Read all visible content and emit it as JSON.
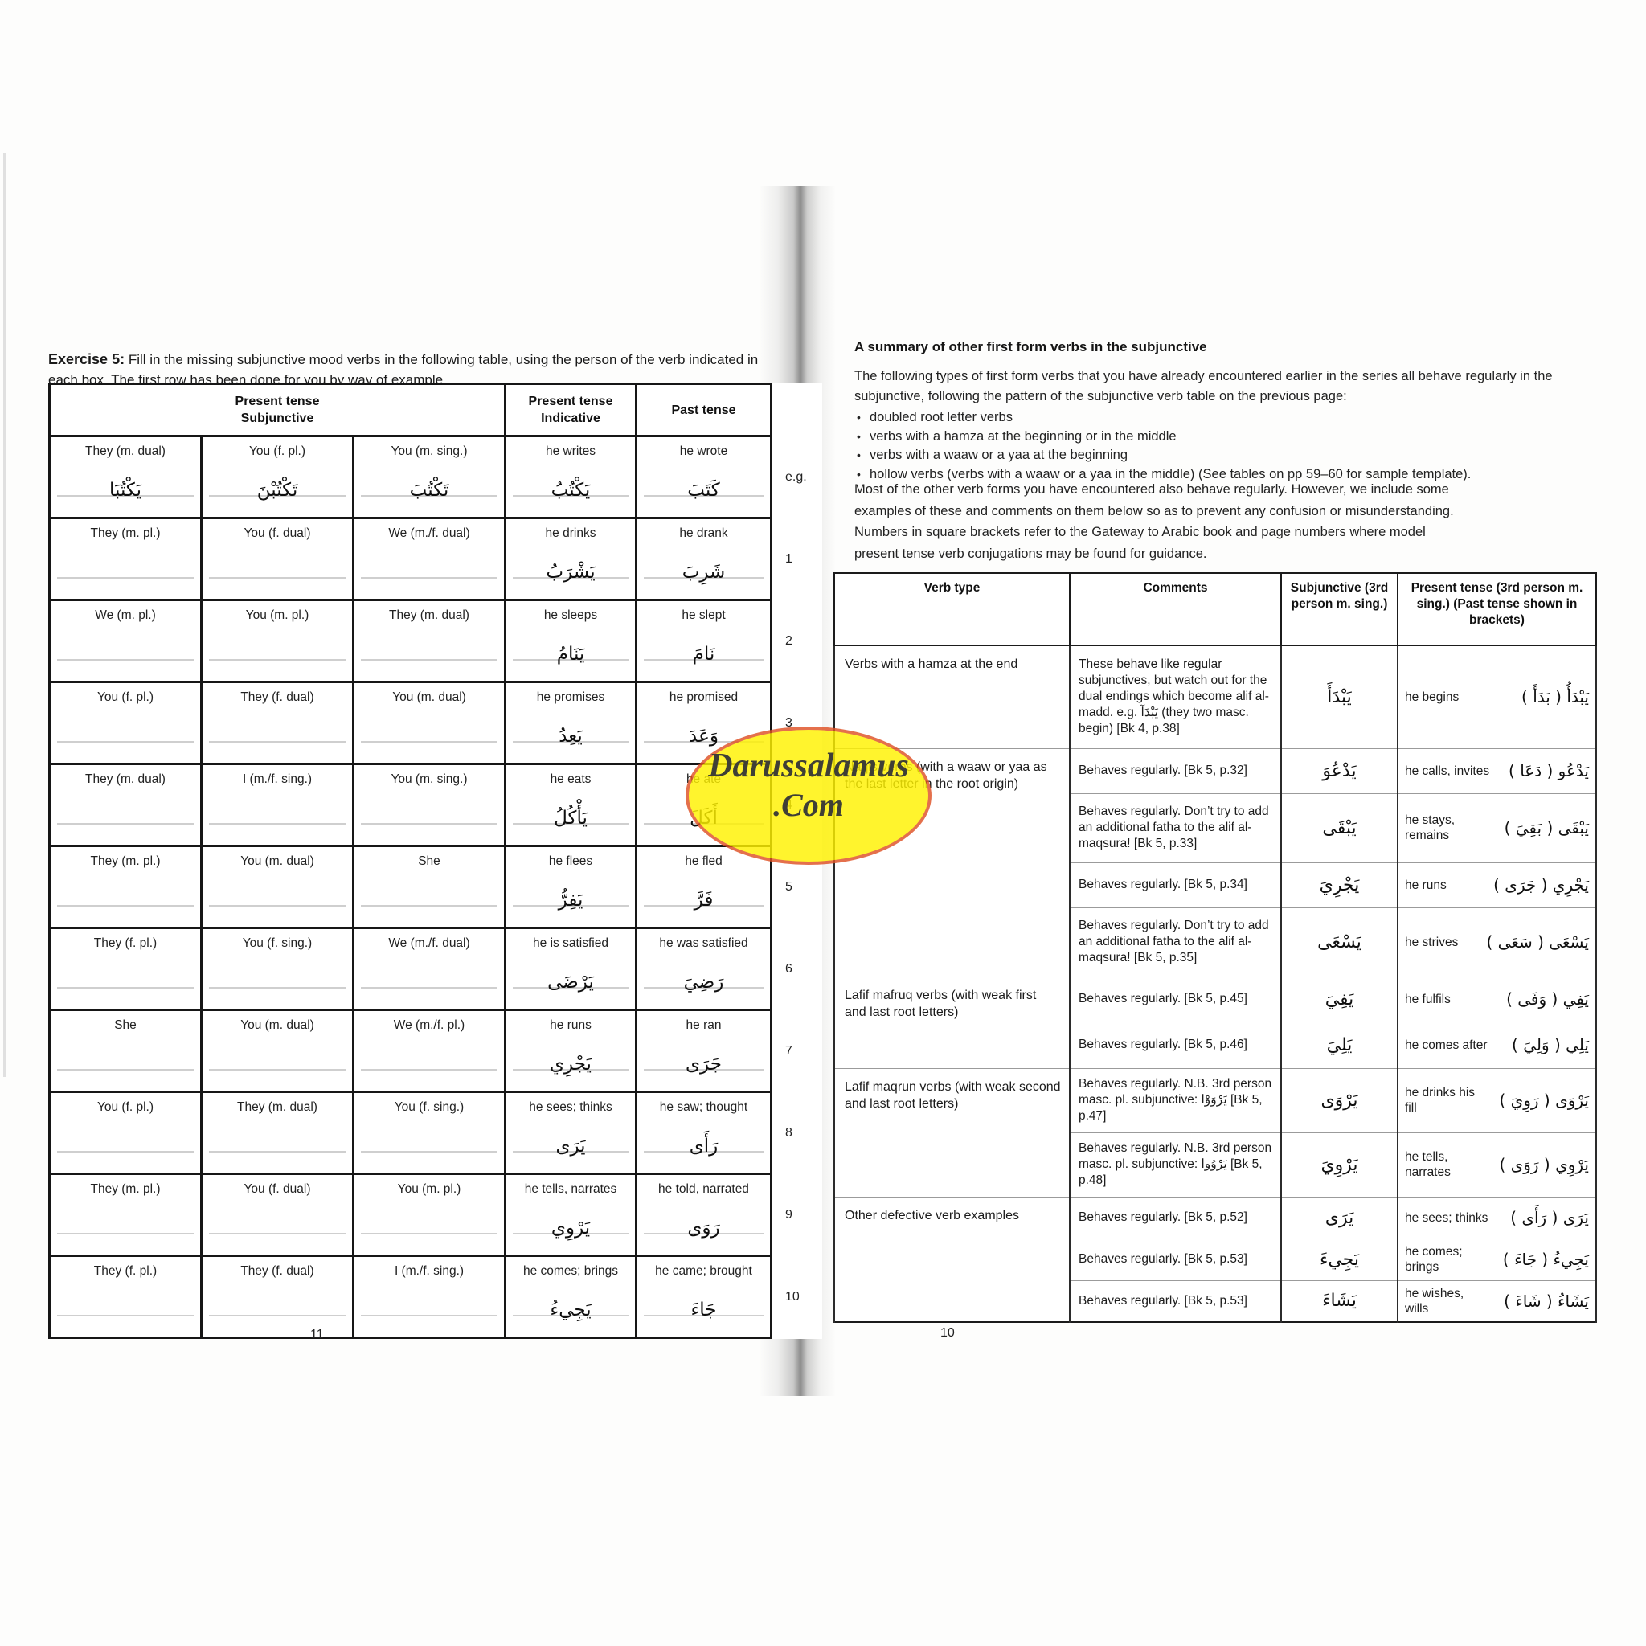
{
  "watermark": {
    "line1": "Darussalamus",
    "line2": ".Com",
    "bg_color": "#fff200",
    "border_color": "#df5125",
    "text_color": "#3f3f36"
  },
  "left_page": {
    "page_number": "11",
    "exercise_label": "Exercise 5:",
    "exercise_text": "Fill in the missing subjunctive mood verbs in the following table, using the person of the verb indicated in each box. The first row has been done for you by way of example.",
    "table": {
      "header": {
        "subjunctive": [
          "Present tense",
          "Subjunctive"
        ],
        "indicative": [
          "Present tense",
          "Indicative"
        ],
        "past": [
          "Past tense"
        ]
      },
      "rows": [
        {
          "num": "e.g.",
          "cells": [
            {
              "label": "They (m. dual)",
              "arabic": "يَكْتُبَا"
            },
            {
              "label": "You (f. pl.)",
              "arabic": "تَكْتُبْنَ"
            },
            {
              "label": "You (m. sing.)",
              "arabic": "تَكْتُبَ"
            },
            {
              "label": "he writes",
              "arabic": "يَكْتُبُ"
            },
            {
              "label": "he wrote",
              "arabic": "كَتَبَ"
            }
          ]
        },
        {
          "num": "1",
          "cells": [
            {
              "label": "They (m. pl.)"
            },
            {
              "label": "You (f. dual)"
            },
            {
              "label": "We (m./f. dual)"
            },
            {
              "label": "he drinks",
              "arabic": "يَشْرَبُ"
            },
            {
              "label": "he drank",
              "arabic": "شَرِبَ"
            }
          ]
        },
        {
          "num": "2",
          "cells": [
            {
              "label": "We (m. pl.)"
            },
            {
              "label": "You (m. pl.)"
            },
            {
              "label": "They (m. dual)"
            },
            {
              "label": "he sleeps",
              "arabic": "يَنَامُ"
            },
            {
              "label": "he slept",
              "arabic": "نَامَ"
            }
          ]
        },
        {
          "num": "3",
          "cells": [
            {
              "label": "You (f. pl.)"
            },
            {
              "label": "They (f. dual)"
            },
            {
              "label": "You (m. dual)"
            },
            {
              "label": "he promises",
              "arabic": "يَعِدُ"
            },
            {
              "label": "he promised",
              "arabic": "وَعَدَ"
            }
          ]
        },
        {
          "num": "4",
          "cells": [
            {
              "label": "They (m. dual)"
            },
            {
              "label": "I (m./f. sing.)"
            },
            {
              "label": "You (m. sing.)"
            },
            {
              "label": "he eats",
              "arabic": "يَأْكُلُ"
            },
            {
              "label": "he ate",
              "arabic": "أَكَلَ"
            }
          ]
        },
        {
          "num": "5",
          "cells": [
            {
              "label": "They (m. pl.)"
            },
            {
              "label": "You (m. dual)"
            },
            {
              "label": "She"
            },
            {
              "label": "he flees",
              "arabic": "يَفِرُّ"
            },
            {
              "label": "he fled",
              "arabic": "فَرَّ"
            }
          ]
        },
        {
          "num": "6",
          "cells": [
            {
              "label": "They (f. pl.)"
            },
            {
              "label": "You (f. sing.)"
            },
            {
              "label": "We (m./f. dual)"
            },
            {
              "label": "he is satisfied",
              "arabic": "يَرْضَى"
            },
            {
              "label": "he was satisfied",
              "arabic": "رَضِيَ"
            }
          ]
        },
        {
          "num": "7",
          "cells": [
            {
              "label": "She"
            },
            {
              "label": "You (m. dual)"
            },
            {
              "label": "We (m./f. pl.)"
            },
            {
              "label": "he runs",
              "arabic": "يَجْرِي"
            },
            {
              "label": "he ran",
              "arabic": "جَرَى"
            }
          ]
        },
        {
          "num": "8",
          "cells": [
            {
              "label": "You (f. pl.)"
            },
            {
              "label": "They (m. dual)"
            },
            {
              "label": "You (f. sing.)"
            },
            {
              "label": "he sees; thinks",
              "arabic": "يَرَى"
            },
            {
              "label": "he saw; thought",
              "arabic": "رَأَى"
            }
          ]
        },
        {
          "num": "9",
          "cells": [
            {
              "label": "They (m. pl.)"
            },
            {
              "label": "You (f. dual)"
            },
            {
              "label": "You (m. pl.)"
            },
            {
              "label": "he tells, narrates",
              "arabic": "يَرْوِي"
            },
            {
              "label": "he told, narrated",
              "arabic": "رَوَى"
            }
          ]
        },
        {
          "num": "10",
          "cells": [
            {
              "label": "They (f. pl.)"
            },
            {
              "label": "They (f. dual)"
            },
            {
              "label": "I (m./f. sing.)"
            },
            {
              "label": "he comes; brings",
              "arabic": "يَجِيءُ"
            },
            {
              "label": "he came; brought",
              "arabic": "جَاءَ"
            }
          ]
        }
      ]
    }
  },
  "right_page": {
    "page_number": "10",
    "heading": "A summary of other first form verbs in the subjunctive",
    "intro": "The following types of first form verbs that you have already encountered earlier in the series all behave regularly in the subjunctive, following the pattern of the subjunctive verb table on the previous page:",
    "bullets": [
      "doubled root letter verbs",
      "verbs with a hamza at the beginning or in the middle",
      "verbs with a waaw or a yaa at the beginning",
      "hollow verbs (verbs with a waaw or a yaa in the middle) (See tables on pp 59–60 for sample template)."
    ],
    "para2_lines": [
      "Most of the other verb forms you have encountered also behave regularly. However, we include some",
      "examples of these and comments on them below so as to prevent any confusion or misunderstanding.",
      "Numbers in square brackets refer to the Gateway to Arabic book and page numbers where model",
      "present tense verb conjugations may be found for guidance."
    ],
    "table": {
      "headers": [
        "Verb type",
        "Comments",
        "Subjunctive (3rd person m. sing.)",
        "Present tense (3rd person m. sing.) (Past tense shown in brackets)"
      ],
      "groups": [
        {
          "verb_type": "Verbs with a hamza at the end",
          "rows": [
            {
              "comment": "These behave like regular subjunctives, but watch out for the dual endings which become alif al-madd. e.g. يَبْدَآ (they two masc. begin) [Bk 4, p.38]",
              "subjunctive": "يَبْدَأَ",
              "meaning": "he begins",
              "present": "يَبْدَأُ ( بَدَأَ )"
            }
          ]
        },
        {
          "verb_type": "Naqis verbs (with a waaw or yaa as the last letter in the root origin)",
          "rows": [
            {
              "comment": "Behaves regularly. [Bk 5, p.32]",
              "subjunctive": "يَدْعُوَ",
              "meaning": "he calls, invites",
              "present": "يَدْعُو ( دَعَا )"
            },
            {
              "comment": "Behaves regularly. Don’t try to add an additional fatha to the alif al-maqsura! [Bk 5, p.33]",
              "subjunctive": "يَبْقَى",
              "meaning": "he stays, remains",
              "present": "يَبْقَى ( بَقِيَ )"
            },
            {
              "comment": "Behaves regularly. [Bk 5, p.34]",
              "subjunctive": "يَجْرِيَ",
              "meaning": "he runs",
              "present": "يَجْرِي ( جَرَى )"
            },
            {
              "comment": "Behaves regularly. Don’t try to add an additional fatha to the alif al-maqsura! [Bk 5, p.35]",
              "subjunctive": "يَسْعَى",
              "meaning": "he strives",
              "present": "يَسْعَى ( سَعَى )"
            }
          ]
        },
        {
          "verb_type": "Lafif mafruq verbs (with weak first and last root letters)",
          "rows": [
            {
              "comment": "Behaves regularly. [Bk 5, p.45]",
              "subjunctive": "يَفِيَ",
              "meaning": "he fulfils",
              "present": "يَفِي ( وَفَى )"
            },
            {
              "comment": "Behaves regularly. [Bk 5, p.46]",
              "subjunctive": "يَلِيَ",
              "meaning": "he comes after",
              "present": "يَلِي ( وَلِيَ )"
            }
          ]
        },
        {
          "verb_type": "Lafif maqrun verbs (with weak second and last root letters)",
          "rows": [
            {
              "comment": "Behaves regularly. N.B. 3rd person masc. pl. subjunctive: يَرْوَوْا [Bk 5, p.47]",
              "subjunctive": "يَرْوَى",
              "meaning": "he drinks his fill",
              "present": "يَرْوَى ( رَوِيَ )"
            },
            {
              "comment": "Behaves regularly. N.B. 3rd person masc. pl. subjunctive: يَرْوُوا [Bk 5, p.48]",
              "subjunctive": "يَرْوِيَ",
              "meaning": "he tells, narrates",
              "present": "يَرْوِي ( رَوَى )"
            }
          ]
        },
        {
          "verb_type": "Other defective verb examples",
          "rows": [
            {
              "comment": "Behaves regularly. [Bk 5, p.52]",
              "subjunctive": "يَرَى",
              "meaning": "he sees; thinks",
              "present": "يَرَى ( رَأَى )"
            },
            {
              "comment": "Behaves regularly. [Bk 5, p.53]",
              "subjunctive": "يَجِيءَ",
              "meaning": "he comes; brings",
              "present": "يَجِيءُ ( جَاءَ )"
            },
            {
              "comment": "Behaves regularly. [Bk 5, p.53]",
              "subjunctive": "يَشَاءَ",
              "meaning": "he wishes, wills",
              "present": "يَشَاءُ ( شَاءَ )"
            }
          ]
        }
      ]
    }
  }
}
